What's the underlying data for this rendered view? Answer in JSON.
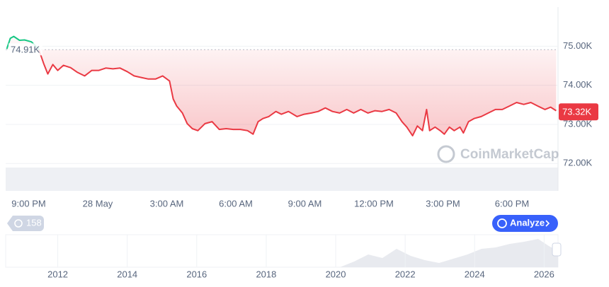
{
  "chart_data": {
    "type": "line",
    "x": [
      -0.95,
      -0.8,
      -0.65,
      -0.4,
      -0.18,
      0.12,
      0.43,
      0.65,
      0.83,
      1.05,
      1.26,
      1.51,
      1.82,
      2.12,
      2.43,
      2.74,
      3.05,
      3.35,
      3.66,
      3.97,
      4.28,
      4.58,
      4.89,
      5.2,
      5.51,
      5.82,
      6.12,
      6.28,
      6.43,
      6.68,
      6.89,
      7.11,
      7.35,
      7.66,
      7.97,
      8.28,
      8.58,
      8.89,
      9.2,
      9.51,
      9.75,
      9.97,
      10.18,
      10.43,
      10.74,
      10.98,
      11.29,
      11.66,
      11.97,
      12.28,
      12.58,
      12.89,
      13.2,
      13.51,
      13.82,
      14.12,
      14.43,
      14.74,
      15.05,
      15.35,
      15.66,
      15.97,
      16.22,
      16.43,
      16.68,
      16.89,
      17.11,
      17.29,
      17.42,
      17.66,
      17.88,
      18.06,
      18.28,
      18.49,
      18.74,
      18.89,
      19.11,
      19.35,
      19.66,
      19.97,
      20.28,
      20.58,
      20.89,
      21.2,
      21.51,
      21.82,
      22.12,
      22.43,
      22.68,
      22.92
    ],
    "series": [
      {
        "up_color": "#16c784",
        "down_color": "#ea3943",
        "values": [
          74930,
          75200,
          75250,
          75150,
          75160,
          75110,
          74930,
          74560,
          74290,
          74530,
          74380,
          74510,
          74450,
          74330,
          74240,
          74380,
          74380,
          74440,
          74420,
          74440,
          74350,
          74240,
          74200,
          74160,
          74160,
          74240,
          74110,
          73650,
          73470,
          73290,
          73020,
          72890,
          72840,
          73020,
          73070,
          72870,
          72890,
          72870,
          72870,
          72840,
          72750,
          73070,
          73150,
          73200,
          73330,
          73260,
          73330,
          73200,
          73260,
          73290,
          73330,
          73420,
          73330,
          73290,
          73380,
          73290,
          73380,
          73290,
          73350,
          73330,
          73380,
          73290,
          73070,
          72930,
          72710,
          72960,
          72840,
          73380,
          72840,
          72930,
          72840,
          72750,
          72930,
          72840,
          72930,
          72780,
          73070,
          73150,
          73200,
          73290,
          73380,
          73380,
          73470,
          73560,
          73510,
          73560,
          73470,
          73380,
          73440,
          73350
        ]
      }
    ],
    "reference": {
      "value": 74910,
      "label": "74.91K"
    },
    "current": {
      "value": 73320,
      "label": "73.32K"
    },
    "xlim": [
      -1,
      23
    ],
    "xticks": [
      {
        "value": 0,
        "label": "9:00 PM"
      },
      {
        "value": 3,
        "label": "28 May"
      },
      {
        "value": 6,
        "label": "3:00 AM"
      },
      {
        "value": 9,
        "label": "6:00 AM"
      },
      {
        "value": 12,
        "label": "9:00 AM"
      },
      {
        "value": 15,
        "label": "12:00 PM"
      },
      {
        "value": 18,
        "label": "3:00 PM"
      },
      {
        "value": 21,
        "label": "6:00 PM"
      }
    ],
    "ylim": [
      71300,
      76000
    ],
    "yticks": [
      {
        "value": 75000,
        "label": "75.00K"
      },
      {
        "value": 74000,
        "label": "74.00K"
      },
      {
        "value": 73000,
        "label": "73.00K"
      },
      {
        "value": 72000,
        "label": "72.00K"
      }
    ],
    "grid": true
  },
  "watermark": "CoinMarketCap",
  "history_badge": "158",
  "analyze_button": "Analyze",
  "navigator": {
    "xlim": [
      2010.5,
      2026.4
    ],
    "xticks": [
      2012,
      2014,
      2016,
      2018,
      2020,
      2022,
      2024,
      2026
    ]
  }
}
